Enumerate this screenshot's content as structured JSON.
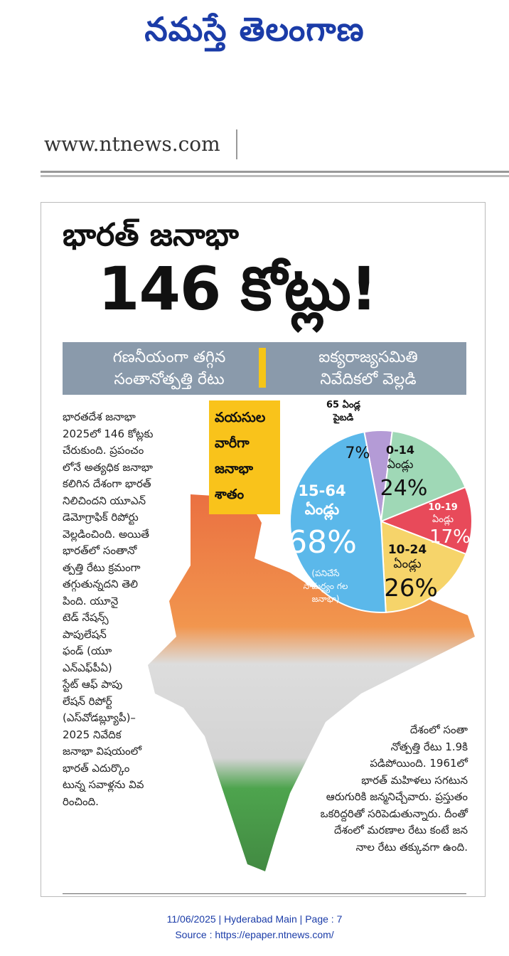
{
  "masthead": {
    "title": "నమస్తే తెలంగాణ"
  },
  "site": {
    "url": "www.ntnews.com"
  },
  "article": {
    "headline_line1": "భారత్ జనాభా",
    "headline_line2": "146 కోట్లు!",
    "banner": {
      "left_line1": "గణనీయంగా తగ్గిన",
      "left_line2": "సంతానోత్పత్తి రేటు",
      "right_line1": "ఐక్యరాజ్యసమితి",
      "right_line2": "నివేదికలో వెల్లడి"
    },
    "body_left": [
      "భారతదేశ జనాభా",
      "2025లో 146 కోట్లకు",
      "చేరుకుంది. ప్రపంచం",
      "లోనే అత్యధిక జనాభా",
      "కలిగిన దేశంగా భారత్",
      "నిలిచిందని యూఎన్",
      "డెమోగ్రాఫిక్ రిపోర్టు",
      "వెల్లడించింది. అయితే",
      "భారత్‌లో సంతానో",
      "త్పత్తి రేటు క్రమంగా",
      "తగ్గుతున్నదని తెలి",
      "పింది. యూనై",
      "టెడ్ నేషన్స్",
      "పాపులేషన్",
      "ఫండ్ (యూ",
      "ఎన్ఎఫ్‌పీఏ)",
      "స్టేట్ ఆఫ్ పాపు",
      "లేషన్ రిపోర్ట్",
      "(ఎస్‌వోడబ్ల్యూపీ)–",
      "2025 నివేదిక",
      "జనాభా విషయంలో",
      "భారత్ ఎదుర్కొం",
      "టున్న సవాళ్లను వివ",
      "రించింది."
    ],
    "body_right": [
      "దేశంలో సంతా",
      "నోత్పత్తి రేటు 1.9కి",
      "పడిపోయింది. 1961లో",
      "భారత్ మహిళలు సగటున",
      "ఆరుగురికి జన్మనిచ్చేవారు. ప్రస్తుతం",
      "ఒకరిద్దరితో సరిపెడుతున్నారు. దీంతో",
      "దేశంలో మరణాల రేటు కంటే జన",
      "నాల రేటు తక్కువగా ఉంది."
    ]
  },
  "chart_data": {
    "type": "pie",
    "title": "వయసుల వారీగా జనాభా శాతం",
    "slices": [
      {
        "label": "0-14 ఏండ్లు",
        "value": 24,
        "color": "#9fd8b6"
      },
      {
        "label": "10-19 ఏండ్లు",
        "value": 17,
        "color": "#e84a5a"
      },
      {
        "label": "10-24 ఏండ్లు",
        "value": 26,
        "color": "#f6d46a"
      },
      {
        "label": "15-64 ఏండ్లు",
        "sublabel": "(పనిచేసే సామర్థ్యం గల జనాభా)",
        "value": 68,
        "color": "#5bb8ea"
      },
      {
        "label": "65 ఏండ్ల పైబడి",
        "value": 7,
        "color": "#b49bd6"
      }
    ],
    "display": {
      "s0_range": "0-14",
      "s0_unit": "ఏండ్లు",
      "s0_pct": "24%",
      "s1_range": "10-19",
      "s1_unit": "ఏండ్లు",
      "s1_pct": "17%",
      "s2_range": "10-24",
      "s2_unit": "ఏండ్లు",
      "s2_pct": "26%",
      "s3_range": "15-64",
      "s3_unit": "ఏండ్లు",
      "s3_pct": "68%",
      "s3_note1": "(పనిచేసే",
      "s3_note2": "సామర్థ్యం గల",
      "s3_note3": "జనాభా)",
      "s4_line1": "65 ఏండ్ల",
      "s4_line2": "పైబడి",
      "s4_pct": "7%"
    },
    "tag_lines": [
      "వయసుల",
      "వారీగా",
      "జనాభా",
      "శాతం"
    ]
  },
  "footer": {
    "date_line": "11/06/2025 | Hyderabad Main | Page : 7",
    "source_line": "Source : https://epaper.ntnews.com/"
  }
}
